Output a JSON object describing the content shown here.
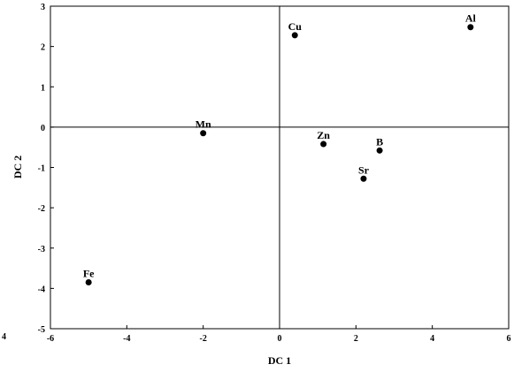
{
  "chart_data": {
    "type": "scatter",
    "title": "",
    "xlabel": "DC 1",
    "ylabel": "DC 2",
    "xlim": [
      -6,
      6
    ],
    "ylim": [
      -5,
      3
    ],
    "xticks": [
      "-6",
      "-4",
      "-2",
      "0",
      "2",
      "4",
      "6"
    ],
    "yticks": [
      "-5",
      "-4",
      "-3",
      "-2",
      "-1",
      "0",
      "1",
      "2",
      "3"
    ],
    "grid": false,
    "reference_lines": {
      "x": 0,
      "y": 0
    },
    "stray_text": "4",
    "points": [
      {
        "label": "Cu",
        "x": 0.4,
        "y": 2.28
      },
      {
        "label": "Al",
        "x": 5.0,
        "y": 2.48
      },
      {
        "label": "Mn",
        "x": -2.0,
        "y": -0.15
      },
      {
        "label": "Zn",
        "x": 1.15,
        "y": -0.42
      },
      {
        "label": "B",
        "x": 2.62,
        "y": -0.58
      },
      {
        "label": "Sr",
        "x": 2.2,
        "y": -1.28
      },
      {
        "label": "Fe",
        "x": -5.0,
        "y": -3.85
      }
    ]
  }
}
